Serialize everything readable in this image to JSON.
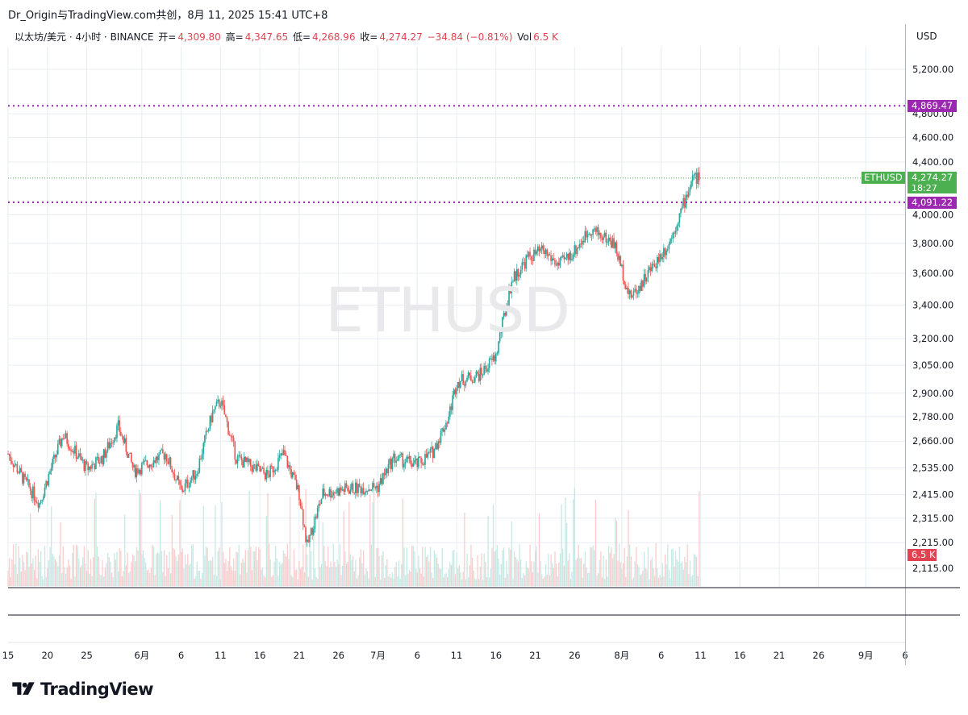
{
  "header": {
    "title": "Dr_Origin与TradingView.com共创，8月 11, 2025 15:41 UTC+8"
  },
  "legend": {
    "symbol_desc": "以太坊/美元 · 4小时 · BINANCE",
    "open_label": "开=",
    "open_value": "4,309.80",
    "high_label": "高=",
    "high_value": "4,347.65",
    "low_label": "低=",
    "low_value": "4,268.96",
    "close_label": "收=",
    "close_value": "4,274.27",
    "change": "−34.84 (−0.81%)",
    "vol_label": "Vol",
    "vol_value": "6.5 K"
  },
  "watermark": "ETHUSD",
  "price_axis": {
    "currency": "USD",
    "ticks": [
      "5,200.00",
      "4,800.00",
      "4,600.00",
      "4,400.00",
      "4,000.00",
      "3,800.00",
      "3,600.00",
      "3,400.00",
      "3,200.00",
      "3,050.00",
      "2,900.00",
      "2,780.00",
      "2,660.00",
      "2,535.00",
      "2,415.00",
      "2,315.00",
      "2,215.00",
      "2,115.00"
    ]
  },
  "price_tags": {
    "upper_line": "4,869.47",
    "lower_line": "4,091.22",
    "current_price": "4,274.27",
    "countdown": "18:27",
    "symbol": "ETHUSD",
    "volume": "6.5 K"
  },
  "time_axis": {
    "ticks": [
      "15",
      "20",
      "25",
      "6月",
      "6",
      "11",
      "16",
      "21",
      "26",
      "7月",
      "6",
      "11",
      "16",
      "21",
      "26",
      "8月",
      "6",
      "11",
      "16",
      "21",
      "26",
      "9月",
      "6"
    ]
  },
  "colors": {
    "up": "#26a69a",
    "down": "#ef5350",
    "level_line": "#9c27b0",
    "current_line": "#4caf50",
    "grid": "#e8ecf2"
  },
  "chart_data": {
    "type": "candlestick",
    "symbol": "ETHUSD",
    "interval": "4h",
    "x_range": [
      "2025-05-15",
      "2025-09-06"
    ],
    "y_scale": "log",
    "horizontal_levels": [
      4869.47,
      4091.22
    ],
    "current_price": 4274.27,
    "price_path": [
      {
        "date": "2025-05-15",
        "close": 2600
      },
      {
        "date": "2025-05-17",
        "close": 2480
      },
      {
        "date": "2025-05-19",
        "close": 2380
      },
      {
        "date": "2025-05-22",
        "close": 2690
      },
      {
        "date": "2025-05-25",
        "close": 2530
      },
      {
        "date": "2025-05-27",
        "close": 2580
      },
      {
        "date": "2025-05-29",
        "close": 2730
      },
      {
        "date": "2025-05-31",
        "close": 2520
      },
      {
        "date": "2025-06-04",
        "close": 2600
      },
      {
        "date": "2025-06-06",
        "close": 2430
      },
      {
        "date": "2025-06-08",
        "close": 2520
      },
      {
        "date": "2025-06-10",
        "close": 2800
      },
      {
        "date": "2025-06-11",
        "close": 2860
      },
      {
        "date": "2025-06-13",
        "close": 2580
      },
      {
        "date": "2025-06-15",
        "close": 2540
      },
      {
        "date": "2025-06-17",
        "close": 2500
      },
      {
        "date": "2025-06-19",
        "close": 2600
      },
      {
        "date": "2025-06-21",
        "close": 2420
      },
      {
        "date": "2025-06-22",
        "close": 2200
      },
      {
        "date": "2025-06-24",
        "close": 2420
      },
      {
        "date": "2025-06-27",
        "close": 2440
      },
      {
        "date": "2025-07-01",
        "close": 2450
      },
      {
        "date": "2025-07-03",
        "close": 2580
      },
      {
        "date": "2025-07-06",
        "close": 2550
      },
      {
        "date": "2025-07-08",
        "close": 2610
      },
      {
        "date": "2025-07-10",
        "close": 2780
      },
      {
        "date": "2025-07-11",
        "close": 2960
      },
      {
        "date": "2025-07-14",
        "close": 3000
      },
      {
        "date": "2025-07-16",
        "close": 3100
      },
      {
        "date": "2025-07-18",
        "close": 3550
      },
      {
        "date": "2025-07-20",
        "close": 3700
      },
      {
        "date": "2025-07-22",
        "close": 3750
      },
      {
        "date": "2025-07-24",
        "close": 3650
      },
      {
        "date": "2025-07-26",
        "close": 3750
      },
      {
        "date": "2025-07-28",
        "close": 3900
      },
      {
        "date": "2025-07-31",
        "close": 3800
      },
      {
        "date": "2025-08-02",
        "close": 3450
      },
      {
        "date": "2025-08-03",
        "close": 3500
      },
      {
        "date": "2025-08-05",
        "close": 3650
      },
      {
        "date": "2025-08-07",
        "close": 3800
      },
      {
        "date": "2025-08-09",
        "close": 4100
      },
      {
        "date": "2025-08-10",
        "close": 4280
      },
      {
        "date": "2025-08-11",
        "close": 4274.27
      }
    ]
  }
}
